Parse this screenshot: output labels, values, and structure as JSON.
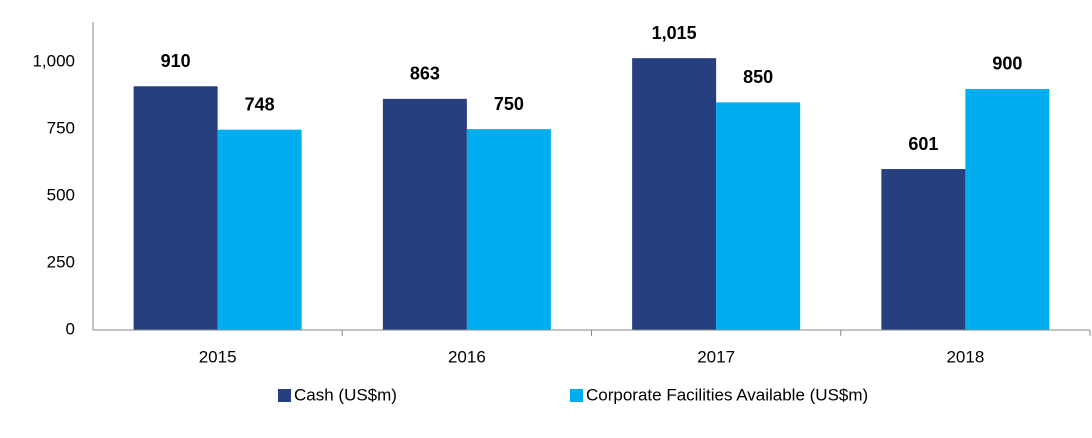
{
  "chart_data": {
    "type": "bar",
    "categories": [
      "2015",
      "2016",
      "2017",
      "2018"
    ],
    "series": [
      {
        "name": "Cash (US$m)",
        "color": "#253f7f",
        "values": [
          910,
          863,
          1015,
          601
        ],
        "value_labels": [
          "910",
          "863",
          "1,015",
          "601"
        ]
      },
      {
        "name": "Corporate Facilities Available (US$m)",
        "color": "#00adef",
        "values": [
          748,
          750,
          850,
          900
        ],
        "value_labels": [
          "748",
          "750",
          "850",
          "900"
        ]
      }
    ],
    "ylim": [
      0,
      1150
    ],
    "yticks": [
      0,
      250,
      500,
      750,
      {
        "value": 1000,
        "label": "1,000"
      }
    ],
    "grid": false,
    "legend": "bottom"
  }
}
